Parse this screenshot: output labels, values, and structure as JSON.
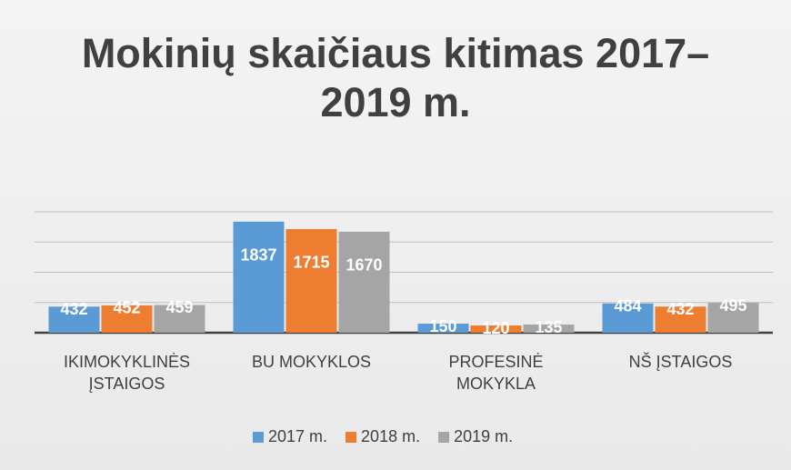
{
  "chart_data": {
    "type": "bar",
    "title": "Mokinių skaičiaus kitimas 2017–2019 m.",
    "categories": [
      "IKIMOKYKLINĖS ĮSTAIGOS",
      "BU MOKYKLOS",
      "PROFESINĖ MOKYKLA",
      "NŠ ĮSTAIGOS"
    ],
    "series": [
      {
        "name": "2017 m.",
        "color": "#5b9bd5",
        "values": [
          432,
          1837,
          150,
          484
        ]
      },
      {
        "name": "2018 m.",
        "color": "#ed7d31",
        "values": [
          452,
          1715,
          120,
          432
        ]
      },
      {
        "name": "2019 m.",
        "color": "#a5a5a5",
        "values": [
          459,
          1670,
          135,
          495
        ]
      }
    ],
    "ylim": [
      0,
      2000
    ],
    "yticks": [
      0,
      500,
      1000,
      1500,
      2000
    ],
    "grid": true,
    "legend": "bottom"
  }
}
